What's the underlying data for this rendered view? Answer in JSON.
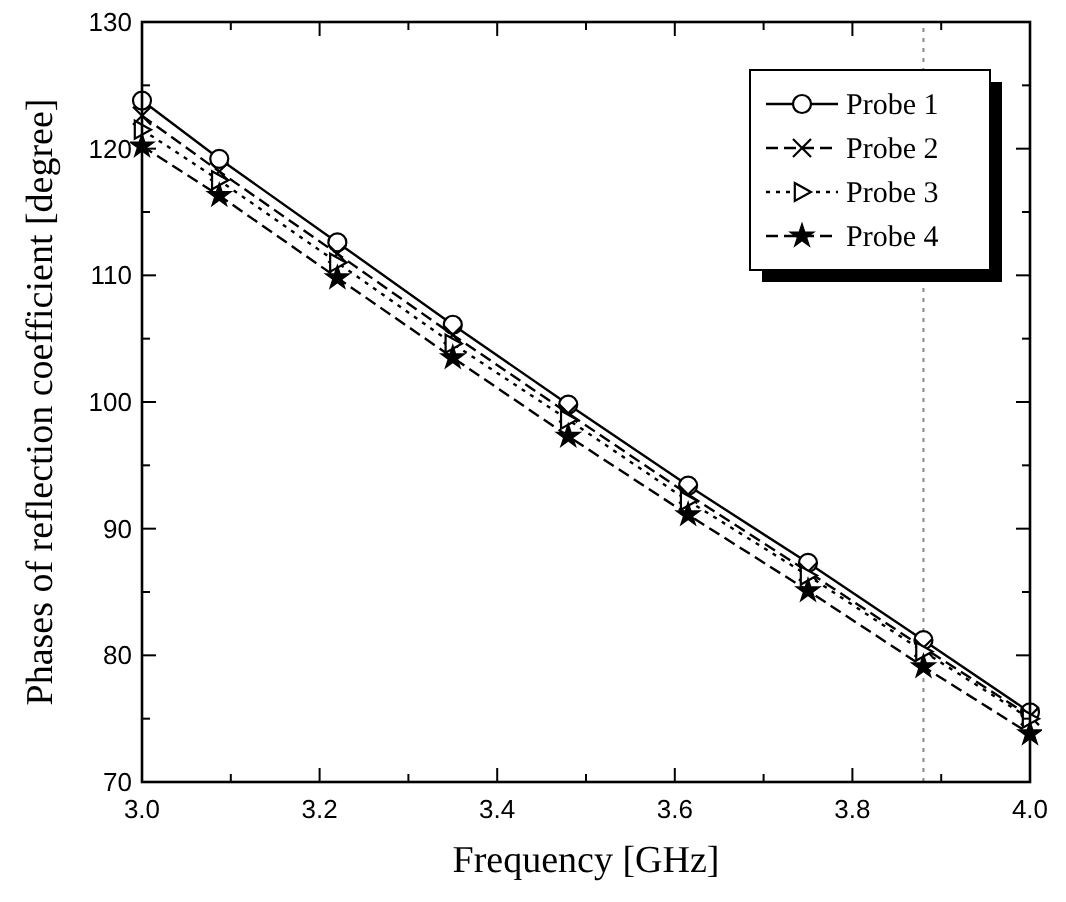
{
  "chart_data": {
    "type": "line",
    "xlabel": "Frequency [GHz]",
    "ylabel": "Phases of reflection coefficient [degree]",
    "x": [
      3.0,
      3.087,
      3.22,
      3.35,
      3.48,
      3.615,
      3.75,
      3.88,
      4.0
    ],
    "series": [
      {
        "name": "Probe 1",
        "color": "#000000",
        "marker": "circle",
        "line_style": "solid",
        "values": [
          123.8,
          119.2,
          112.6,
          106.1,
          99.8,
          93.4,
          87.3,
          81.2,
          75.5
        ]
      },
      {
        "name": "Probe 2",
        "color": "#000000",
        "marker": "cross",
        "line_style": "dashed",
        "values": [
          122.6,
          118.2,
          111.7,
          105.3,
          99.1,
          92.7,
          86.6,
          80.6,
          75.2
        ]
      },
      {
        "name": "Probe 3",
        "color": "#000000",
        "marker": "triangle",
        "line_style": "dotted",
        "values": [
          121.5,
          117.5,
          111.0,
          104.6,
          98.6,
          92.2,
          86.3,
          80.3,
          75.0
        ]
      },
      {
        "name": "Probe 4",
        "color": "#000000",
        "marker": "star",
        "line_style": "dashed",
        "values": [
          120.2,
          116.3,
          109.8,
          103.5,
          97.3,
          91.1,
          85.1,
          79.1,
          73.8
        ]
      }
    ],
    "xlim": [
      3.0,
      4.0
    ],
    "xticks": [
      {
        "value": 3.0,
        "label": "3.0"
      },
      {
        "value": 3.1,
        "label": null
      },
      {
        "value": 3.2,
        "label": "3.2"
      },
      {
        "value": 3.3,
        "label": null
      },
      {
        "value": 3.4,
        "label": "3.4"
      },
      {
        "value": 3.5,
        "label": null
      },
      {
        "value": 3.6,
        "label": "3.6"
      },
      {
        "value": 3.7,
        "label": null
      },
      {
        "value": 3.8,
        "label": "3.8"
      },
      {
        "value": 3.9,
        "label": null
      },
      {
        "value": 4.0,
        "label": "4.0"
      }
    ],
    "ylim": [
      70,
      130
    ],
    "yticks": [
      70,
      {
        "value": 75,
        "label": null
      },
      80,
      {
        "value": 85,
        "label": null
      },
      90,
      {
        "value": 95,
        "label": null
      },
      100,
      {
        "value": 105,
        "label": null
      },
      110,
      {
        "value": 115,
        "label": null
      },
      120,
      {
        "value": 125,
        "label": null
      },
      130
    ],
    "ref_lines": [
      {
        "axis": "x",
        "value": 3.88,
        "color": "#888888",
        "line_style": "dotted"
      }
    ],
    "legend": "top right",
    "grid": false
  }
}
